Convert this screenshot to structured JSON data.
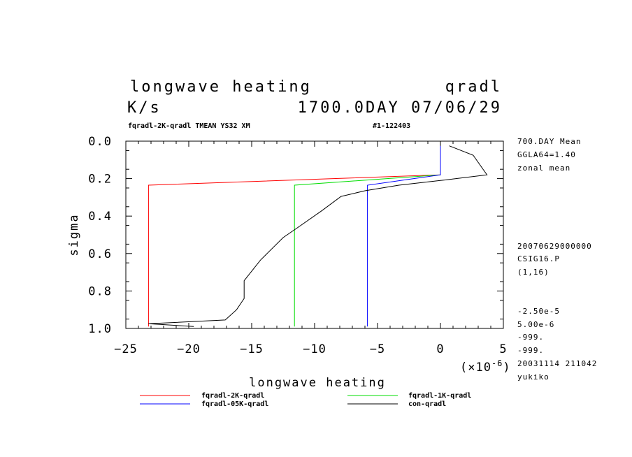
{
  "header": {
    "title_left": "longwave heating",
    "title_right": "qradl",
    "units": "K/s",
    "time": "1700.0DAY 07/06/29",
    "subtitle_left": "fqradl-2K-qradl TMEAN YS32 XM",
    "subtitle_right": "#1-122403"
  },
  "side_info": {
    "top": [
      "700.DAY Mean",
      "GGLA64=1.40",
      "zonal mean"
    ],
    "middle": [
      "20070629000000",
      "CSIG16.P",
      "(1,16)"
    ],
    "bottom": [
      "-2.50e-5",
      "5.00e-6",
      "-999.",
      "-999.",
      "20031114 211042",
      "yukiko"
    ]
  },
  "colors": {
    "fqradl-2K-qradl": "#ff0000",
    "fqradl-1K-qradl": "#00dd00",
    "fqradl-05K-qradl": "#0000ff",
    "con-qradl": "#000000"
  },
  "chart_data": {
    "type": "line",
    "title": "longwave heating",
    "xlabel": "longwave heating",
    "ylabel": "sigma",
    "x_multiplier": "(×10",
    "x_multiplier_exp": "-6",
    "x_multiplier_close": ")",
    "xlim": [
      -25,
      5
    ],
    "ylim": [
      1.0,
      0.0
    ],
    "x_ticks": [
      -25,
      -20,
      -15,
      -10,
      -5,
      0,
      5
    ],
    "x_tick_labels": [
      "−25",
      "−20",
      "−15",
      "−10",
      "−5",
      "0",
      "5"
    ],
    "y_ticks": [
      0.0,
      0.2,
      0.4,
      0.6,
      0.8,
      1.0
    ],
    "y_tick_labels": [
      "0.0",
      "0.2",
      "0.4",
      "0.6",
      "0.8",
      "1.0"
    ],
    "series": [
      {
        "name": "fqradl-2K-qradl",
        "color": "#ff0000",
        "x": [
          0.0,
          0.0,
          -23.2,
          -23.2,
          -23.2
        ],
        "y": [
          0.025,
          0.18,
          0.235,
          0.98,
          0.99
        ]
      },
      {
        "name": "fqradl-1K-qradl",
        "color": "#00dd00",
        "x": [
          0.0,
          0.0,
          -11.6,
          -11.6,
          -11.6
        ],
        "y": [
          0.025,
          0.18,
          0.235,
          0.98,
          0.99
        ]
      },
      {
        "name": "fqradl-05K-qradl",
        "color": "#0000ff",
        "x": [
          0.0,
          0.0,
          -5.8,
          -5.8,
          -5.8
        ],
        "y": [
          0.025,
          0.18,
          0.235,
          0.98,
          0.99
        ]
      },
      {
        "name": "con-qradl",
        "color": "#000000",
        "x": [
          0.7,
          2.6,
          3.7,
          0.0,
          -3.3,
          -6.0,
          -7.9,
          -9.4,
          -11.2,
          -12.5,
          -14.3,
          -15.6,
          -15.6,
          -16.2,
          -17.1,
          -23.2,
          -19.6
        ],
        "y": [
          0.025,
          0.075,
          0.18,
          0.21,
          0.235,
          0.265,
          0.295,
          0.37,
          0.455,
          0.515,
          0.635,
          0.745,
          0.84,
          0.9,
          0.955,
          0.975,
          0.99
        ]
      }
    ],
    "legend": [
      {
        "label": "fqradl-2K-qradl",
        "color": "#ff0000"
      },
      {
        "label": "fqradl-1K-qradl",
        "color": "#00dd00"
      },
      {
        "label": "fqradl-05K-qradl",
        "color": "#0000ff"
      },
      {
        "label": "con-qradl",
        "color": "#000000"
      }
    ]
  }
}
